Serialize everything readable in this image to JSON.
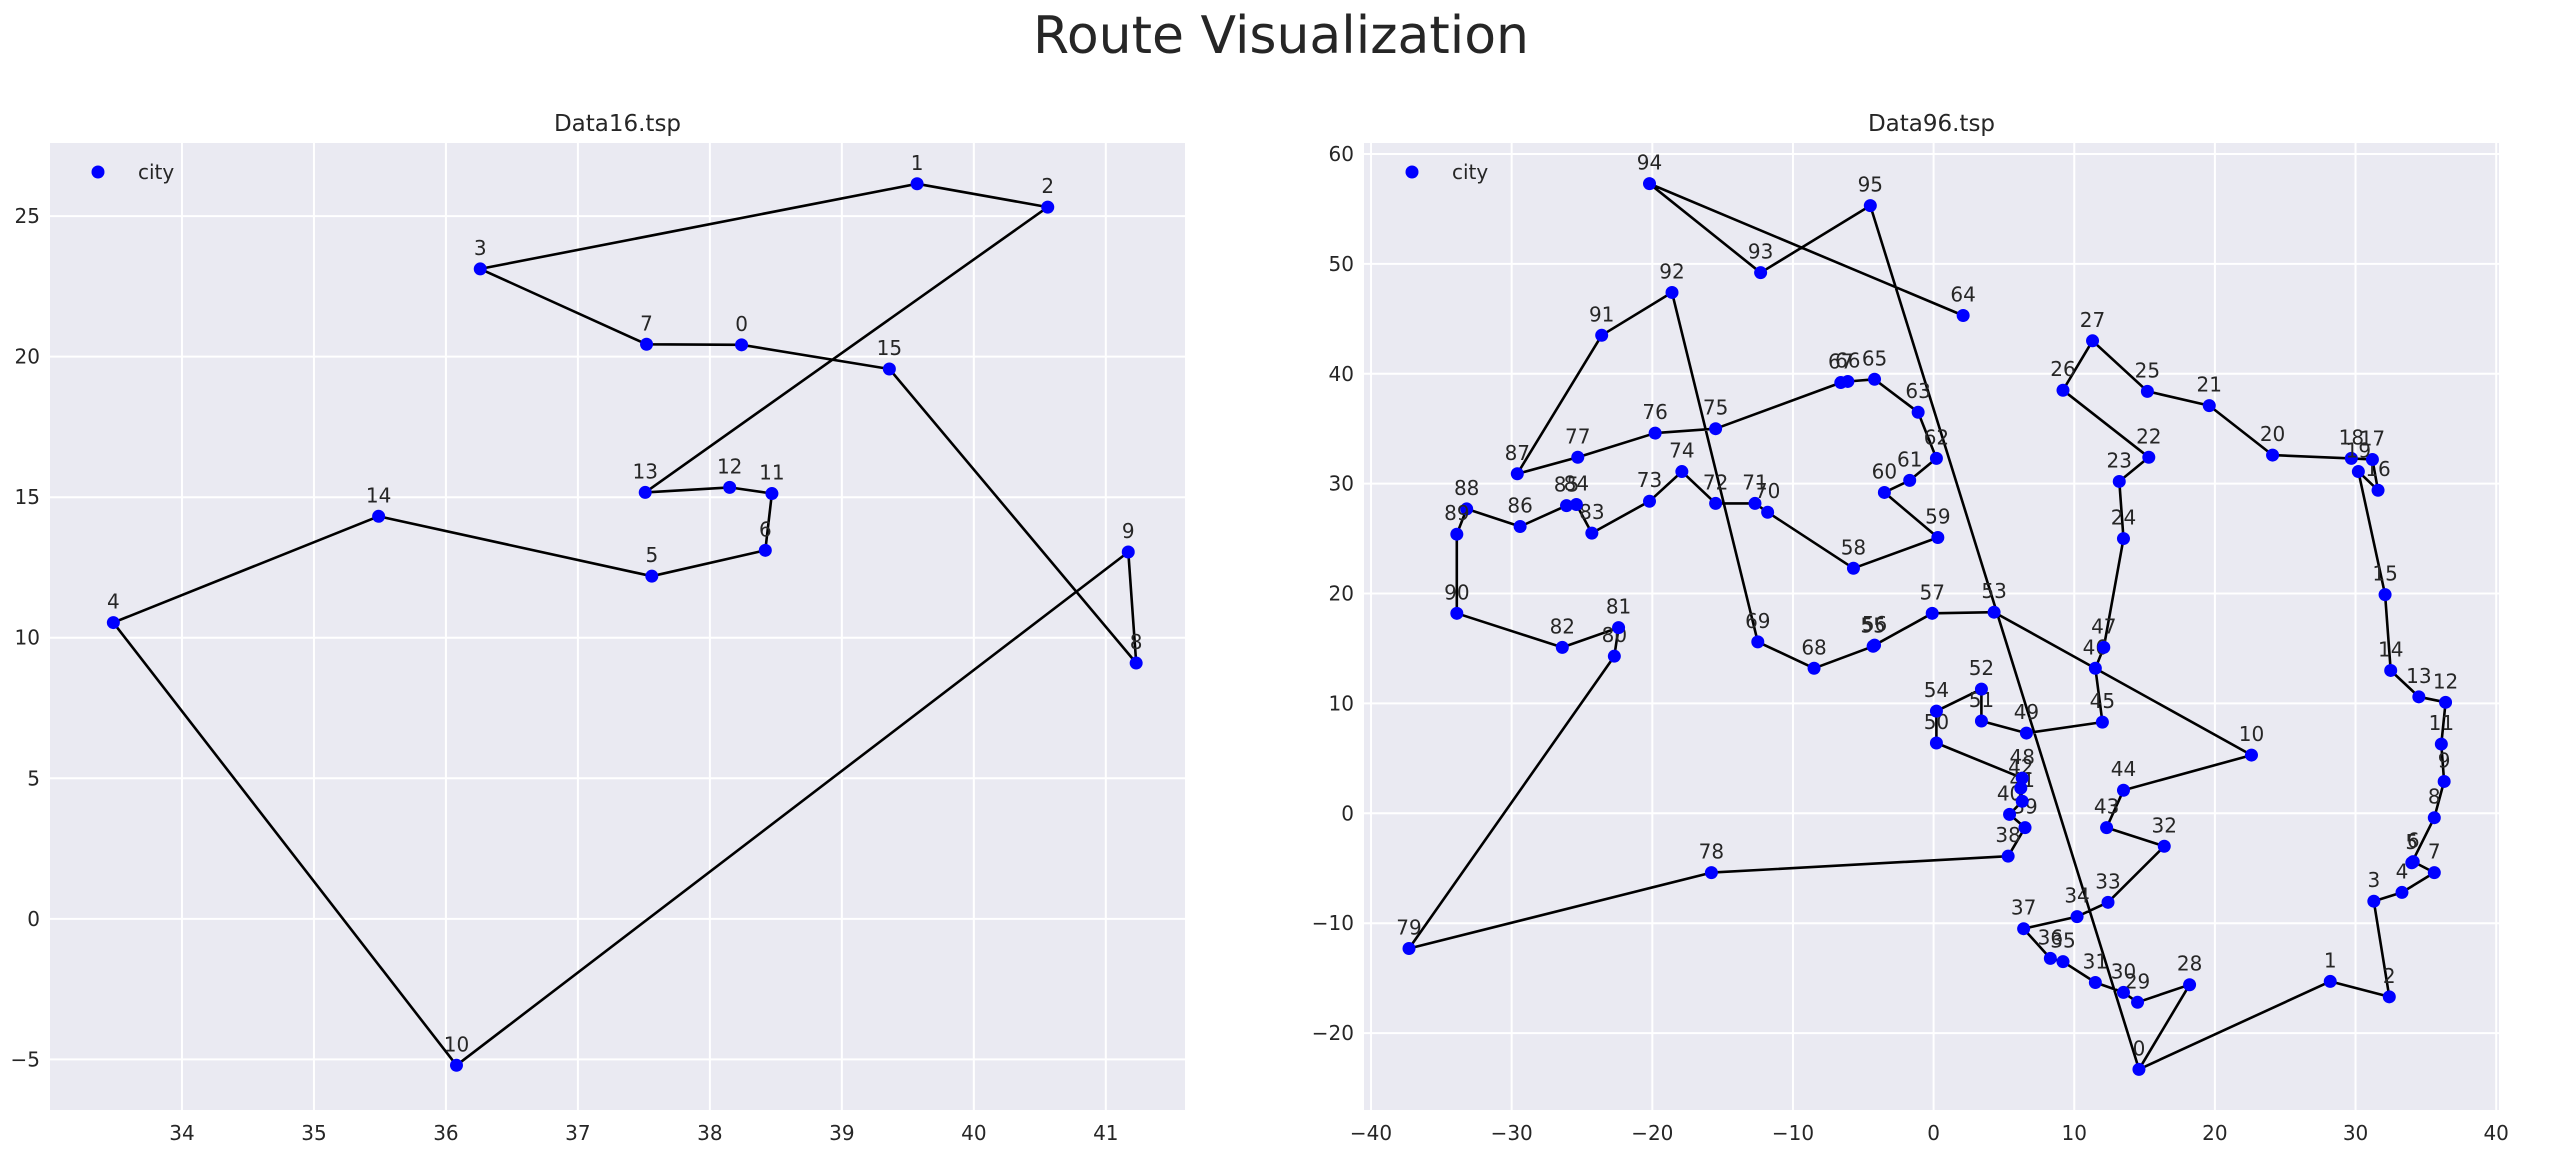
{
  "suptitle": "Route Visualization",
  "colors": {
    "point": "#0000ff",
    "route": "#000000",
    "plot_bg": "#eaeaf2",
    "grid": "#ffffff"
  },
  "chart_data": [
    {
      "type": "scatter",
      "title": "Data16.tsp",
      "legend": {
        "label": "city",
        "placement": "top-left"
      },
      "grid": true,
      "xlim": [
        33.0,
        41.6
      ],
      "ylim": [
        -6.8,
        27.6
      ],
      "xticks": [
        34,
        35,
        36,
        37,
        38,
        39,
        40,
        41
      ],
      "yticks": [
        -5,
        0,
        5,
        10,
        15,
        20,
        25
      ],
      "cities": [
        {
          "id": 0,
          "x": 38.24,
          "y": 20.42
        },
        {
          "id": 1,
          "x": 39.57,
          "y": 26.15
        },
        {
          "id": 2,
          "x": 40.56,
          "y": 25.32
        },
        {
          "id": 3,
          "x": 36.26,
          "y": 23.12
        },
        {
          "id": 4,
          "x": 33.48,
          "y": 10.54
        },
        {
          "id": 5,
          "x": 37.56,
          "y": 12.19
        },
        {
          "id": 6,
          "x": 38.42,
          "y": 13.11
        },
        {
          "id": 7,
          "x": 37.52,
          "y": 20.44
        },
        {
          "id": 8,
          "x": 41.23,
          "y": 9.1
        },
        {
          "id": 9,
          "x": 41.17,
          "y": 13.05
        },
        {
          "id": 10,
          "x": 36.08,
          "y": -5.21
        },
        {
          "id": 11,
          "x": 38.47,
          "y": 15.13
        },
        {
          "id": 12,
          "x": 38.15,
          "y": 15.35
        },
        {
          "id": 13,
          "x": 37.51,
          "y": 15.17
        },
        {
          "id": 14,
          "x": 35.49,
          "y": 14.32
        },
        {
          "id": 15,
          "x": 39.36,
          "y": 19.56
        }
      ],
      "route": [
        0,
        7,
        3,
        1,
        2,
        13,
        12,
        11,
        6,
        5,
        14,
        4,
        10,
        9,
        8,
        15,
        0
      ]
    },
    {
      "type": "scatter",
      "title": "Data96.tsp",
      "legend": {
        "label": "city",
        "placement": "top-left"
      },
      "grid": true,
      "xlim": [
        -40.5,
        40.2
      ],
      "ylim": [
        -27.0,
        61.0
      ],
      "xticks": [
        -40,
        -30,
        -20,
        -10,
        0,
        10,
        20,
        30,
        40
      ],
      "yticks": [
        -20,
        -10,
        0,
        10,
        20,
        30,
        40,
        50,
        60
      ],
      "cities": [
        {
          "id": 0,
          "x": 14.6,
          "y": -23.3
        },
        {
          "id": 1,
          "x": 28.2,
          "y": -15.3
        },
        {
          "id": 2,
          "x": 32.4,
          "y": -16.7
        },
        {
          "id": 3,
          "x": 31.3,
          "y": -8.0
        },
        {
          "id": 4,
          "x": 33.3,
          "y": -7.2
        },
        {
          "id": 5,
          "x": 34.0,
          "y": -4.5
        },
        {
          "id": 6,
          "x": 34.1,
          "y": -4.4
        },
        {
          "id": 7,
          "x": 35.6,
          "y": -5.4
        },
        {
          "id": 8,
          "x": 35.6,
          "y": -0.4
        },
        {
          "id": 9,
          "x": 36.3,
          "y": 2.9
        },
        {
          "id": 10,
          "x": 22.6,
          "y": 5.3
        },
        {
          "id": 11,
          "x": 36.1,
          "y": 6.3
        },
        {
          "id": 12,
          "x": 36.4,
          "y": 10.1
        },
        {
          "id": 13,
          "x": 34.5,
          "y": 10.6
        },
        {
          "id": 14,
          "x": 32.5,
          "y": 13.0
        },
        {
          "id": 15,
          "x": 32.1,
          "y": 19.9
        },
        {
          "id": 16,
          "x": 31.6,
          "y": 29.4
        },
        {
          "id": 17,
          "x": 31.2,
          "y": 32.2
        },
        {
          "id": 18,
          "x": 29.7,
          "y": 32.3
        },
        {
          "id": 19,
          "x": 30.2,
          "y": 31.1
        },
        {
          "id": 20,
          "x": 24.1,
          "y": 32.6
        },
        {
          "id": 21,
          "x": 19.6,
          "y": 37.1
        },
        {
          "id": 22,
          "x": 15.3,
          "y": 32.4
        },
        {
          "id": 23,
          "x": 13.2,
          "y": 30.2
        },
        {
          "id": 24,
          "x": 13.5,
          "y": 25.0
        },
        {
          "id": 25,
          "x": 15.2,
          "y": 38.4
        },
        {
          "id": 26,
          "x": 9.2,
          "y": 38.5
        },
        {
          "id": 27,
          "x": 11.3,
          "y": 43.0
        },
        {
          "id": 28,
          "x": 18.2,
          "y": -15.6
        },
        {
          "id": 29,
          "x": 14.5,
          "y": -17.2
        },
        {
          "id": 30,
          "x": 13.5,
          "y": -16.3
        },
        {
          "id": 31,
          "x": 11.5,
          "y": -15.4
        },
        {
          "id": 32,
          "x": 16.4,
          "y": -3.0
        },
        {
          "id": 33,
          "x": 12.4,
          "y": -8.1
        },
        {
          "id": 34,
          "x": 10.2,
          "y": -9.4
        },
        {
          "id": 35,
          "x": 9.2,
          "y": -13.5
        },
        {
          "id": 36,
          "x": 8.3,
          "y": -13.2
        },
        {
          "id": 37,
          "x": 6.4,
          "y": -10.5
        },
        {
          "id": 38,
          "x": 5.3,
          "y": -3.9
        },
        {
          "id": 39,
          "x": 6.5,
          "y": -1.3
        },
        {
          "id": 40,
          "x": 5.4,
          "y": -0.1
        },
        {
          "id": 41,
          "x": 6.3,
          "y": 1.1
        },
        {
          "id": 42,
          "x": 6.2,
          "y": 2.3
        },
        {
          "id": 43,
          "x": 12.3,
          "y": -1.3
        },
        {
          "id": 44,
          "x": 13.5,
          "y": 2.1
        },
        {
          "id": 45,
          "x": 12.0,
          "y": 8.3
        },
        {
          "id": 46,
          "x": 11.5,
          "y": 13.2
        },
        {
          "id": 47,
          "x": 12.1,
          "y": 15.1
        },
        {
          "id": 48,
          "x": 6.3,
          "y": 3.2
        },
        {
          "id": 49,
          "x": 6.6,
          "y": 7.3
        },
        {
          "id": 50,
          "x": 0.2,
          "y": 6.4
        },
        {
          "id": 51,
          "x": 3.4,
          "y": 8.4
        },
        {
          "id": 52,
          "x": 3.4,
          "y": 11.3
        },
        {
          "id": 53,
          "x": 4.3,
          "y": 18.3
        },
        {
          "id": 54,
          "x": 0.2,
          "y": 9.3
        },
        {
          "id": 55,
          "x": -4.3,
          "y": 15.2
        },
        {
          "id": 56,
          "x": -4.2,
          "y": 15.3
        },
        {
          "id": 57,
          "x": -0.1,
          "y": 18.2
        },
        {
          "id": 58,
          "x": -5.7,
          "y": 22.3
        },
        {
          "id": 59,
          "x": 0.3,
          "y": 25.1
        },
        {
          "id": 60,
          "x": -3.5,
          "y": 29.2
        },
        {
          "id": 61,
          "x": -1.7,
          "y": 30.3
        },
        {
          "id": 62,
          "x": 0.2,
          "y": 32.3
        },
        {
          "id": 63,
          "x": -1.1,
          "y": 36.5
        },
        {
          "id": 64,
          "x": 2.1,
          "y": 45.3
        },
        {
          "id": 65,
          "x": -4.2,
          "y": 39.5
        },
        {
          "id": 66,
          "x": -6.1,
          "y": 39.3
        },
        {
          "id": 67,
          "x": -6.6,
          "y": 39.2
        },
        {
          "id": 68,
          "x": -8.5,
          "y": 13.2
        },
        {
          "id": 69,
          "x": -12.5,
          "y": 15.6
        },
        {
          "id": 70,
          "x": -11.8,
          "y": 27.4
        },
        {
          "id": 71,
          "x": -12.7,
          "y": 28.2
        },
        {
          "id": 72,
          "x": -15.5,
          "y": 28.2
        },
        {
          "id": 73,
          "x": -20.2,
          "y": 28.4
        },
        {
          "id": 74,
          "x": -17.9,
          "y": 31.1
        },
        {
          "id": 75,
          "x": -15.5,
          "y": 35.0
        },
        {
          "id": 76,
          "x": -19.8,
          "y": 34.6
        },
        {
          "id": 77,
          "x": -25.3,
          "y": 32.4
        },
        {
          "id": 78,
          "x": -15.8,
          "y": -5.4
        },
        {
          "id": 79,
          "x": -37.3,
          "y": -12.3
        },
        {
          "id": 80,
          "x": -22.7,
          "y": 14.3
        },
        {
          "id": 81,
          "x": -22.4,
          "y": 16.9
        },
        {
          "id": 82,
          "x": -26.4,
          "y": 15.1
        },
        {
          "id": 83,
          "x": -24.3,
          "y": 25.5
        },
        {
          "id": 84,
          "x": -25.4,
          "y": 28.1
        },
        {
          "id": 85,
          "x": -26.1,
          "y": 28.0
        },
        {
          "id": 86,
          "x": -29.4,
          "y": 26.1
        },
        {
          "id": 87,
          "x": -29.6,
          "y": 30.9
        },
        {
          "id": 88,
          "x": -33.2,
          "y": 27.7
        },
        {
          "id": 89,
          "x": -33.9,
          "y": 25.4
        },
        {
          "id": 90,
          "x": -33.9,
          "y": 18.2
        },
        {
          "id": 91,
          "x": -23.6,
          "y": 43.5
        },
        {
          "id": 92,
          "x": -18.6,
          "y": 47.4
        },
        {
          "id": 93,
          "x": -12.3,
          "y": 49.2
        },
        {
          "id": 94,
          "x": -20.2,
          "y": 57.3
        },
        {
          "id": 95,
          "x": -4.5,
          "y": 55.3
        }
      ],
      "route": [
        0,
        28,
        29,
        30,
        31,
        35,
        36,
        37,
        34,
        33,
        32,
        43,
        44,
        10,
        53,
        57,
        56,
        55,
        68,
        69,
        92,
        91,
        87,
        77,
        76,
        75,
        67,
        66,
        65,
        63,
        62,
        61,
        60,
        59,
        58,
        70,
        71,
        72,
        74,
        73,
        83,
        84,
        85,
        86,
        88,
        89,
        90,
        82,
        81,
        80,
        79,
        78,
        38,
        39,
        40,
        41,
        42,
        48,
        50,
        54,
        52,
        51,
        49,
        45,
        46,
        47,
        24,
        23,
        22,
        26,
        27,
        25,
        21,
        20,
        18,
        17,
        16,
        19,
        15,
        14,
        13,
        12,
        11,
        9,
        8,
        5,
        6,
        7,
        4,
        3,
        2,
        1,
        0,
        95,
        93,
        94,
        64
      ]
    }
  ]
}
